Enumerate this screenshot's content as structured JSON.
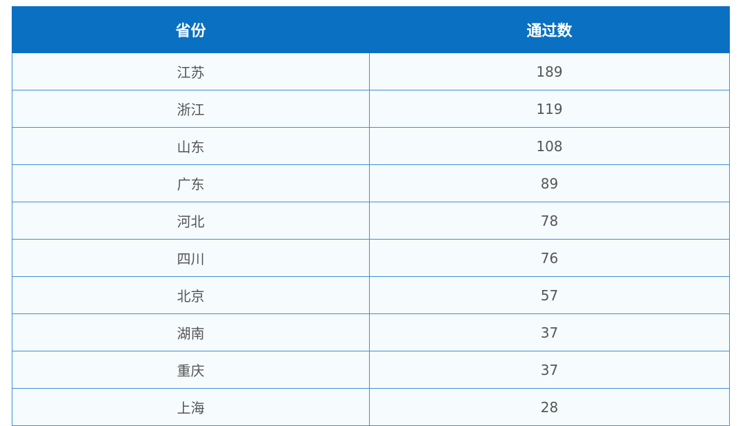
{
  "chart_data": {
    "type": "table",
    "columns": [
      "省份",
      "通过数"
    ],
    "rows": [
      [
        "江苏",
        189
      ],
      [
        "浙江",
        119
      ],
      [
        "山东",
        108
      ],
      [
        "广东",
        89
      ],
      [
        "河北",
        78
      ],
      [
        "四川",
        76
      ],
      [
        "北京",
        57
      ],
      [
        "湖南",
        37
      ],
      [
        "重庆",
        37
      ],
      [
        "上海",
        28
      ]
    ],
    "colors": {
      "header_bg": "#0a70c2",
      "border": "#3d8fd6",
      "body_bg": "#f6fbfd"
    }
  }
}
